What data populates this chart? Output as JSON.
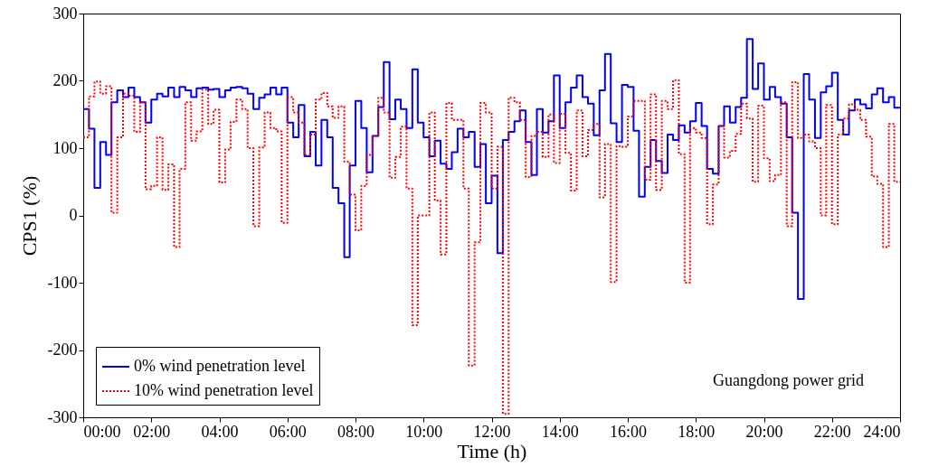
{
  "chart_data": {
    "type": "step",
    "xlabel": "Time (h)",
    "ylabel": "CPS1 (%)",
    "annotations": [
      "Guangdong power grid"
    ],
    "x": [
      0,
      0.17,
      0.33,
      0.5,
      0.67,
      0.83,
      1,
      1.17,
      1.33,
      1.5,
      1.67,
      1.83,
      2,
      2.17,
      2.33,
      2.5,
      2.67,
      2.83,
      3,
      3.17,
      3.33,
      3.5,
      3.67,
      3.83,
      4,
      4.17,
      4.33,
      4.5,
      4.67,
      4.83,
      5,
      5.17,
      5.33,
      5.5,
      5.67,
      5.83,
      6,
      6.17,
      6.33,
      6.5,
      6.67,
      6.83,
      7,
      7.17,
      7.33,
      7.5,
      7.67,
      7.83,
      8,
      8.17,
      8.33,
      8.5,
      8.67,
      8.83,
      9,
      9.17,
      9.33,
      9.5,
      9.67,
      9.83,
      10,
      10.17,
      10.33,
      10.5,
      10.67,
      10.83,
      11,
      11.17,
      11.33,
      11.5,
      11.67,
      11.83,
      12,
      12.17,
      12.33,
      12.5,
      12.67,
      12.83,
      13,
      13.17,
      13.33,
      13.5,
      13.67,
      13.83,
      14,
      14.17,
      14.33,
      14.5,
      14.67,
      14.83,
      15,
      15.17,
      15.33,
      15.5,
      15.67,
      15.83,
      16,
      16.17,
      16.33,
      16.5,
      16.67,
      16.83,
      17,
      17.17,
      17.33,
      17.5,
      17.67,
      17.83,
      18,
      18.17,
      18.33,
      18.5,
      18.67,
      18.83,
      19,
      19.17,
      19.33,
      19.5,
      19.67,
      19.83,
      20,
      20.17,
      20.33,
      20.5,
      20.67,
      20.83,
      21,
      21.17,
      21.33,
      21.5,
      21.67,
      21.83,
      22,
      22.17,
      22.33,
      22.5,
      22.67,
      22.83,
      23,
      23.17,
      23.33,
      23.5,
      23.67,
      23.83,
      24
    ],
    "series": [
      {
        "name": "0% wind penetration level",
        "color": "#0000ff",
        "line_style": "solid",
        "values": [
          158,
          129,
          41,
          109,
          90,
          168,
          186,
          176,
          190,
          176,
          168,
          138,
          172,
          181,
          177,
          190,
          176,
          191,
          186,
          176,
          189,
          190,
          187,
          188,
          176,
          186,
          190,
          191,
          189,
          181,
          158,
          175,
          180,
          190,
          180,
          190,
          138,
          116,
          164,
          88,
          124,
          74,
          142,
          116,
          41,
          18,
          -62,
          74,
          170,
          130,
          64,
          118,
          161,
          228,
          143,
          172,
          158,
          130,
          217,
          138,
          116,
          88,
          111,
          77,
          69,
          94,
          129,
          116,
          124,
          72,
          106,
          18,
          59,
          -56,
          112,
          124,
          140,
          156,
          109,
          60,
          158,
          123,
          140,
          208,
          130,
          168,
          190,
          208,
          176,
          166,
          119,
          186,
          240,
          137,
          109,
          194,
          191,
          126,
          28,
          72,
          112,
          81,
          63,
          120,
          112,
          134,
          123,
          140,
          167,
          133,
          69,
          62,
          133,
          162,
          138,
          161,
          175,
          262,
          188,
          226,
          172,
          191,
          176,
          166,
          116,
          4,
          -124,
          210,
          172,
          115,
          183,
          192,
          212,
          142,
          120,
          156,
          172,
          165,
          159,
          180,
          189,
          168,
          176,
          160,
          160
        ]
      },
      {
        "name": "10% wind penetration level",
        "color": "#ff0000",
        "line_style": "dotted",
        "values": [
          116,
          177,
          199,
          181,
          192,
          4,
          116,
          181,
          178,
          124,
          168,
          39,
          44,
          116,
          38,
          76,
          -47,
          69,
          168,
          111,
          125,
          187,
          136,
          157,
          49,
          98,
          139,
          172,
          158,
          100,
          -16,
          101,
          153,
          130,
          125,
          -11,
          176,
          153,
          138,
          90,
          120,
          172,
          182,
          162,
          145,
          162,
          80,
          31,
          -22,
          44,
          90,
          118,
          175,
          153,
          56,
          87,
          132,
          40,
          -163,
          0,
          0,
          153,
          22,
          -58,
          167,
          142,
          142,
          40,
          -223,
          -40,
          167,
          153,
          40,
          102,
          -295,
          175,
          168,
          142,
          57,
          118,
          124,
          87,
          150,
          78,
          151,
          93,
          37,
          156,
          88,
          127,
          136,
          27,
          106,
          -99,
          103,
          102,
          147,
          170,
          170,
          53,
          180,
          38,
          170,
          158,
          201,
          91,
          -100,
          130,
          123,
          115,
          -13,
          46,
          133,
          86,
          96,
          121,
          166,
          144,
          50,
          163,
          85,
          51,
          60,
          168,
          -16,
          198,
          115,
          120,
          110,
          100,
          0,
          164,
          -13,
          120,
          144,
          165,
          157,
          142,
          117,
          58,
          47,
          -47,
          136,
          50,
          50
        ]
      }
    ],
    "xlim": [
      0,
      24
    ],
    "xticks": [
      {
        "value": 0,
        "label": "00:00"
      },
      {
        "value": 2,
        "label": "02:00"
      },
      {
        "value": 4,
        "label": "04:00"
      },
      {
        "value": 6,
        "label": "06:00"
      },
      {
        "value": 8,
        "label": "08:00"
      },
      {
        "value": 10,
        "label": "10:00"
      },
      {
        "value": 12,
        "label": "12:00"
      },
      {
        "value": 14,
        "label": "14:00"
      },
      {
        "value": 16,
        "label": "16:00"
      },
      {
        "value": 18,
        "label": "18:00"
      },
      {
        "value": 20,
        "label": "20:00"
      },
      {
        "value": 22,
        "label": "22:00"
      },
      {
        "value": 24,
        "label": "24:00"
      }
    ],
    "ylim": [
      -300,
      300
    ],
    "yticks": [
      -300,
      -200,
      -100,
      0,
      100,
      200,
      300
    ],
    "legend": "bottom left",
    "grid": false
  }
}
